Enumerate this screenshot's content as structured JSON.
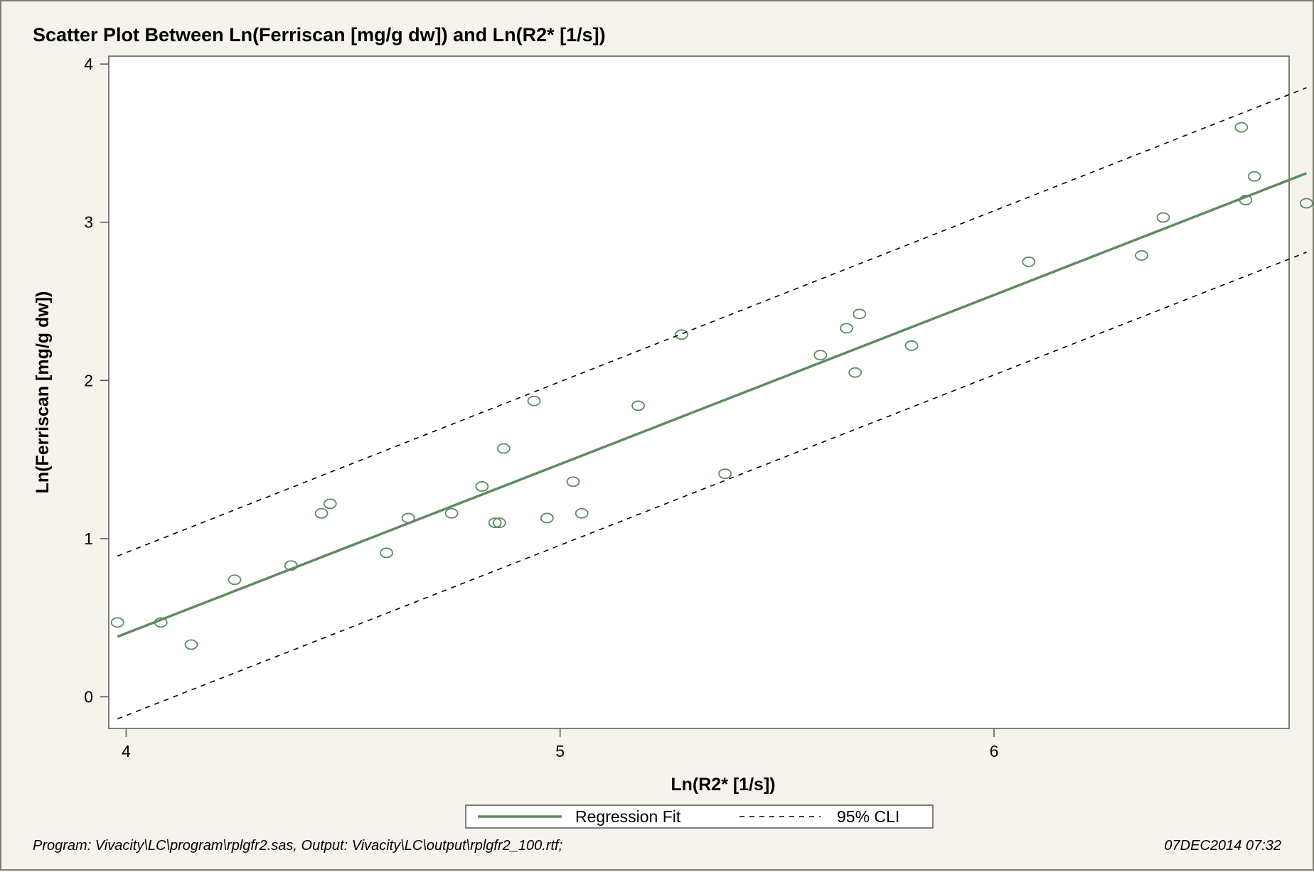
{
  "footer": {
    "program": "Program: Vivacity\\LC\\program\\rplgfr2.sas, Output: Vivacity\\LC\\output\\rplgfr2_100.rtf;",
    "datetime": "07DEC2014 07:32"
  },
  "colors": {
    "series": "#5f8a63",
    "background": "#f6f3ec",
    "plot_background": "#ffffff",
    "text": "#000000"
  },
  "chart_data": {
    "type": "scatter",
    "title": "Scatter Plot Between Ln(Ferriscan [mg/g dw]) and Ln(R2* [1/s])",
    "xlabel": "Ln(R2* [1/s])",
    "ylabel": "Ln(Ferriscan [mg/g dw])",
    "xlim": [
      3.96,
      6.68
    ],
    "ylim": [
      -0.2,
      4.05
    ],
    "xticks": [
      4,
      5,
      6
    ],
    "yticks": [
      0,
      1,
      2,
      3,
      4
    ],
    "grid": false,
    "legend_position": "bottom-center",
    "series": [
      {
        "kind": "markers",
        "marker": "open-circle",
        "x": [
          3.98,
          4.08,
          4.15,
          4.25,
          4.38,
          4.45,
          4.47,
          4.6,
          4.65,
          4.75,
          4.82,
          4.85,
          4.86,
          4.87,
          4.94,
          4.97,
          5.03,
          5.05,
          5.18,
          5.28,
          5.38,
          5.6,
          5.66,
          5.68,
          5.69,
          5.81,
          6.08,
          6.34,
          6.39,
          6.57,
          6.58,
          6.6,
          6.72
        ],
        "y": [
          0.47,
          0.47,
          0.33,
          0.74,
          0.83,
          1.16,
          1.22,
          0.91,
          1.13,
          1.16,
          1.33,
          1.1,
          1.1,
          1.57,
          1.87,
          1.13,
          1.36,
          1.16,
          1.84,
          2.29,
          1.41,
          2.16,
          2.33,
          2.05,
          2.42,
          2.22,
          2.75,
          2.79,
          3.03,
          3.6,
          3.14,
          3.29,
          3.12
        ]
      },
      {
        "name": "Regression Fit",
        "kind": "line",
        "style": "solid",
        "x": [
          3.98,
          6.72
        ],
        "y": [
          0.38,
          3.31
        ]
      },
      {
        "name": "95% CLI",
        "kind": "line",
        "style": "dashed",
        "x": [
          3.98,
          6.72
        ],
        "y": [
          0.89,
          3.85
        ]
      },
      {
        "name": "95% CLI",
        "kind": "line",
        "style": "dashed",
        "x": [
          3.98,
          6.72
        ],
        "y": [
          -0.14,
          2.81
        ]
      }
    ]
  }
}
